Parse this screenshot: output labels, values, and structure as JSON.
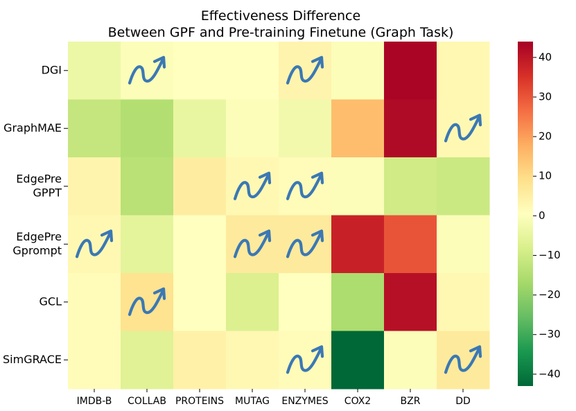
{
  "chart_data": {
    "type": "heatmap",
    "title": [
      "Effectiveness Difference",
      "Between GPF and Pre-training Finetune (Graph Task)"
    ],
    "rows": [
      [
        "DGI"
      ],
      [
        "GraphMAE"
      ],
      [
        "EdgePre",
        "GPPT"
      ],
      [
        "EdgePre",
        "Gprompt"
      ],
      [
        "GCL"
      ],
      [
        "SimGRACE"
      ]
    ],
    "columns": [
      "IMDB-B",
      "COLLAB",
      "PROTEINS",
      "MUTAG",
      "ENZYMES",
      "COX2",
      "BZR",
      "DD"
    ],
    "values": [
      [
        -4,
        -1,
        0,
        0,
        3,
        -1,
        43,
        2
      ],
      [
        -12,
        -15,
        -5,
        -1,
        -3,
        15,
        42,
        2
      ],
      [
        3,
        -14,
        5,
        2,
        1,
        -1,
        -10,
        -11
      ],
      [
        2,
        -6,
        0,
        6,
        6,
        38,
        30,
        -1
      ],
      [
        1,
        8,
        0,
        -8,
        0,
        -16,
        41,
        2
      ],
      [
        1,
        -7,
        4,
        2,
        1,
        -43,
        -1,
        6
      ]
    ],
    "arrows": [
      [
        0,
        1,
        0,
        0,
        1,
        0,
        0,
        0
      ],
      [
        0,
        0,
        0,
        0,
        0,
        0,
        0,
        1
      ],
      [
        0,
        0,
        0,
        1,
        1,
        0,
        0,
        0
      ],
      [
        1,
        0,
        0,
        1,
        1,
        0,
        0,
        0
      ],
      [
        0,
        1,
        0,
        0,
        0,
        0,
        0,
        0
      ],
      [
        0,
        0,
        0,
        0,
        1,
        0,
        0,
        1
      ]
    ],
    "colormap": "RdYlGn_r",
    "vmin": -43,
    "vmax": 44,
    "colorbar_ticks": [
      40,
      30,
      20,
      10,
      0,
      -10,
      -20,
      -30,
      -40
    ]
  }
}
